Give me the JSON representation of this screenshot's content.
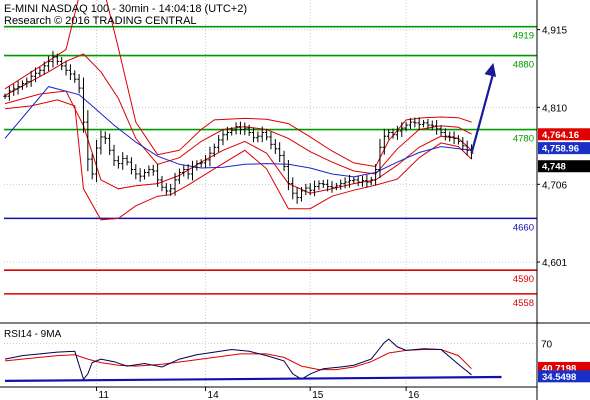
{
  "header": {
    "line1": "E-MINI NASDAQ 100 - 30min - 14:04:18 (UTC+2)",
    "line2": "Research © 2016 TRADING CENTRAL"
  },
  "colors": {
    "resistance": "#009a00",
    "support_blue": "#1010b0",
    "support_red": "#dd0000",
    "bollinger": "#dd0000",
    "moving_average": "#1a24c8",
    "arrow": "#1a1a99",
    "price_bars": "#000000",
    "rsi_line": "#000050",
    "rsi_ma": "#dd0000",
    "grid": "#cccccc",
    "tag_red": "#e00000",
    "tag_blue": "#1a2ec8",
    "tag_black": "#000000"
  },
  "chart_data": [
    {
      "type": "line",
      "panel": "price",
      "title": "E-MINI NASDAQ 100 - 30min",
      "x_tick_labels": [
        "11",
        "14",
        "15",
        "16"
      ],
      "y_tick_labels": [
        "4,915",
        "4,810",
        "4,706",
        "4,601"
      ],
      "ylim": [
        4520,
        4955
      ],
      "grid": true,
      "levels": [
        {
          "label": "4919",
          "value": 4919,
          "color": "green"
        },
        {
          "label": "4880",
          "value": 4880,
          "color": "green"
        },
        {
          "label": "4780",
          "value": 4780,
          "color": "green"
        },
        {
          "label": "4660",
          "value": 4660,
          "color": "blue"
        },
        {
          "label": "4590",
          "value": 4590,
          "color": "red"
        },
        {
          "label": "4558",
          "value": 4558,
          "color": "red"
        }
      ],
      "price_tags": [
        {
          "label": "4,764.16",
          "color": "red"
        },
        {
          "label": "4,758.96",
          "color": "blue"
        },
        {
          "label": "4,748",
          "color": "black"
        }
      ],
      "series": [
        {
          "name": "price",
          "style": "ohlc",
          "values": [
            4825,
            4832,
            4835,
            4838,
            4842,
            4845,
            4852,
            4856,
            4860,
            4866,
            4872,
            4878,
            4872,
            4866,
            4860,
            4855,
            4848,
            4836,
            4790,
            4740,
            4720,
            4755,
            4770,
            4768,
            4752,
            4738,
            4734,
            4741,
            4736,
            4726,
            4720,
            4717,
            4722,
            4726,
            4724,
            4712,
            4702,
            4697,
            4700,
            4712,
            4722,
            4726,
            4720,
            4729,
            4734,
            4735,
            4739,
            4748,
            4756,
            4766,
            4773,
            4776,
            4779,
            4784,
            4780,
            4782,
            4776,
            4769,
            4771,
            4776,
            4770,
            4760,
            4754,
            4745,
            4730,
            4707,
            4694,
            4688,
            4697,
            4701,
            4698,
            4703,
            4707,
            4706,
            4703,
            4702,
            4704,
            4707,
            4709,
            4711,
            4712,
            4709,
            4711,
            4709,
            4712,
            4726,
            4756,
            4771,
            4776,
            4773,
            4778,
            4782,
            4786,
            4790,
            4789,
            4787,
            4789,
            4786,
            4785,
            4781,
            4776,
            4771,
            4770,
            4768,
            4764,
            4758,
            4752,
            4748
          ]
        },
        {
          "name": "moving_average",
          "x_index": [
            0,
            10,
            17,
            20,
            25,
            30,
            35,
            40,
            45,
            50,
            55,
            60,
            65,
            70,
            75,
            80,
            85,
            90,
            95,
            100,
            107
          ],
          "values": [
            4768,
            4838,
            4827,
            4812,
            4786,
            4763,
            4744,
            4733,
            4728,
            4729,
            4733,
            4734,
            4733,
            4728,
            4720,
            4716,
            4722,
            4736,
            4749,
            4757,
            4752
          ]
        },
        {
          "name": "bollinger_upper",
          "x_index": [
            0,
            8,
            14,
            17,
            19,
            22,
            26,
            30,
            35,
            40,
            45,
            48,
            55,
            60,
            65,
            70,
            75,
            80,
            85,
            88,
            92,
            96,
            100,
            104,
            107
          ],
          "values": [
            4835,
            4865,
            4888,
            4960,
            5000,
            4985,
            4890,
            4790,
            4746,
            4752,
            4780,
            4793,
            4795,
            4794,
            4788,
            4770,
            4751,
            4735,
            4730,
            4765,
            4793,
            4796,
            4797,
            4796,
            4790
          ]
        },
        {
          "name": "bollinger_lower",
          "x_index": [
            0,
            6,
            12,
            16,
            18,
            22,
            26,
            30,
            35,
            38,
            42,
            48,
            55,
            60,
            65,
            70,
            75,
            80,
            85,
            90,
            95,
            100,
            104,
            107
          ],
          "values": [
            4808,
            4812,
            4820,
            4812,
            4700,
            4658,
            4660,
            4677,
            4690,
            4692,
            4705,
            4727,
            4752,
            4727,
            4673,
            4673,
            4690,
            4698,
            4705,
            4713,
            4742,
            4762,
            4757,
            4740
          ]
        },
        {
          "name": "bollinger_inner_upper",
          "x_index": [
            0,
            10,
            14,
            18,
            22,
            26,
            30,
            35,
            40,
            45,
            50,
            55,
            60,
            65,
            70,
            75,
            80,
            85,
            90,
            95,
            100,
            104,
            107
          ],
          "values": [
            4826,
            4858,
            4872,
            4882,
            4858,
            4822,
            4768,
            4733,
            4742,
            4764,
            4780,
            4784,
            4780,
            4768,
            4750,
            4736,
            4724,
            4720,
            4754,
            4780,
            4785,
            4783,
            4774
          ]
        },
        {
          "name": "bollinger_inner_lower",
          "x_index": [
            0,
            8,
            14,
            18,
            22,
            26,
            30,
            35,
            40,
            45,
            50,
            55,
            60,
            65,
            70,
            75,
            80,
            85,
            90,
            95,
            100,
            104,
            107
          ],
          "values": [
            4815,
            4828,
            4832,
            4785,
            4712,
            4700,
            4704,
            4707,
            4718,
            4736,
            4752,
            4764,
            4748,
            4707,
            4694,
            4700,
            4707,
            4712,
            4732,
            4756,
            4771,
            4768,
            4752
          ]
        },
        {
          "name": "projection_arrow",
          "x_index": [
            107,
            112
          ],
          "values": [
            4748,
            4870
          ]
        }
      ]
    },
    {
      "type": "line",
      "panel": "rsi",
      "title": "RSI14 - 9MA",
      "y_tick_labels": [
        "70"
      ],
      "ylim": [
        20,
        90
      ],
      "grid": true,
      "price_tags": [
        {
          "label": "40.7198",
          "color": "red"
        },
        {
          "label": "34.5498",
          "color": "blue"
        }
      ],
      "series": [
        {
          "name": "rsi",
          "x_index": [
            0,
            4,
            8,
            12,
            16,
            17,
            18,
            19,
            20,
            22,
            25,
            28,
            32,
            36,
            40,
            44,
            48,
            52,
            56,
            60,
            64,
            66,
            68,
            70,
            73,
            77,
            80,
            84,
            87,
            88,
            90,
            92,
            96,
            100,
            104,
            107
          ],
          "values": [
            52,
            56,
            58,
            60,
            61,
            45,
            29,
            35,
            48,
            52,
            49,
            44,
            47,
            43,
            52,
            57,
            60,
            63,
            61,
            56,
            50,
            35,
            29,
            35,
            41,
            43,
            45,
            52,
            71,
            75,
            66,
            62,
            64,
            63,
            46,
            34
          ]
        },
        {
          "name": "rsi_ma",
          "x_index": [
            0,
            6,
            12,
            16,
            19,
            22,
            26,
            30,
            36,
            42,
            48,
            54,
            60,
            64,
            68,
            72,
            76,
            80,
            84,
            88,
            92,
            96,
            100,
            104,
            107
          ],
          "values": [
            50,
            53,
            56,
            57,
            52,
            48,
            45,
            44,
            46,
            50,
            54,
            58,
            58,
            54,
            44,
            40,
            40,
            43,
            49,
            59,
            62,
            63,
            63,
            56,
            41
          ]
        },
        {
          "name": "rsi_trend",
          "x_index": [
            0,
            107
          ],
          "values": [
            27,
            31.5
          ]
        }
      ]
    }
  ]
}
